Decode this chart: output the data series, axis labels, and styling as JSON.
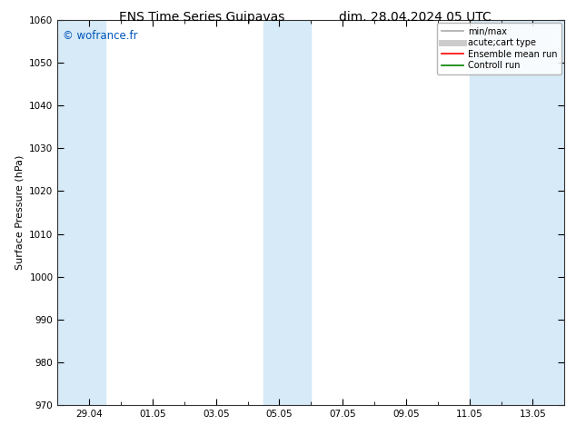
{
  "title_left": "ENS Time Series Guipavas",
  "title_right": "dim. 28.04.2024 05 UTC",
  "ylabel": "Surface Pressure (hPa)",
  "ylim": [
    970,
    1060
  ],
  "yticks": [
    970,
    980,
    990,
    1000,
    1010,
    1020,
    1030,
    1040,
    1050,
    1060
  ],
  "xtick_labels": [
    "29.04",
    "01.05",
    "03.05",
    "05.05",
    "07.05",
    "09.05",
    "11.05",
    "13.05"
  ],
  "xtick_positions": [
    1,
    3,
    5,
    7,
    9,
    11,
    13,
    15
  ],
  "xlim": [
    0,
    16
  ],
  "watermark": "© wofrance.fr",
  "watermark_color": "#0055bb",
  "background_color": "#ffffff",
  "plot_bg_color": "#ffffff",
  "shaded_regions": [
    {
      "x_start": 0,
      "x_end": 1.5,
      "color": "#d6eaf8"
    },
    {
      "x_start": 6.5,
      "x_end": 8.0,
      "color": "#d6eaf8"
    },
    {
      "x_start": 13.0,
      "x_end": 16.0,
      "color": "#d6eaf8"
    }
  ],
  "legend_entries": [
    {
      "label": "min/max",
      "color": "#aaaaaa",
      "lw": 1.2
    },
    {
      "label": "acute;cart type",
      "color": "#cccccc",
      "lw": 5
    },
    {
      "label": "Ensemble mean run",
      "color": "#ff0000",
      "lw": 1.2
    },
    {
      "label": "Controll run",
      "color": "#008000",
      "lw": 1.2
    }
  ],
  "title_fontsize": 10,
  "axis_label_fontsize": 8,
  "tick_fontsize": 7.5,
  "legend_fontsize": 7
}
